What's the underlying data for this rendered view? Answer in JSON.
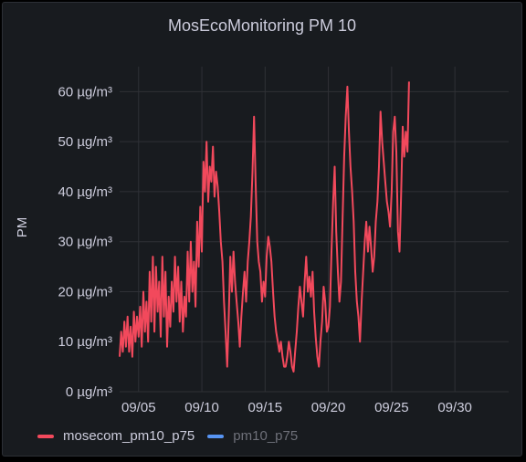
{
  "panel": {
    "title": "MosEcoMonitoring PM 10"
  },
  "chart_data": {
    "type": "line",
    "title": "MosEcoMonitoring PM 10",
    "ylabel": "PM",
    "xlabel": "",
    "yunit": "µg/m³",
    "ylim": [
      0,
      65
    ],
    "yticks": [
      0,
      10,
      20,
      30,
      40,
      50,
      60
    ],
    "ytick_labels": [
      "0 µg/m³",
      "10 µg/m³",
      "20 µg/m³",
      "30 µg/m³",
      "40 µg/m³",
      "50 µg/m³",
      "60 µg/m³"
    ],
    "xlim": [
      "09/03 12:00",
      "10/04 06:00"
    ],
    "xticks": [
      "09/05",
      "09/10",
      "09/15",
      "09/20",
      "09/25",
      "09/30"
    ],
    "grid": true,
    "legend_position": "bottom-left",
    "series": [
      {
        "name": "mosecom_pm10_p75",
        "color": "#f2495c",
        "visible": true,
        "x_start": "09/03 12:00",
        "x_step_hours": 3,
        "values": [
          7,
          12,
          8,
          14,
          9,
          15,
          8,
          13,
          7,
          16,
          10,
          15,
          11,
          17,
          9,
          20,
          12,
          18,
          10,
          24,
          14,
          27,
          12,
          25,
          16,
          22,
          11,
          27,
          15,
          24,
          9,
          19,
          13,
          22,
          16,
          27,
          18,
          25,
          14,
          22,
          12,
          19,
          15,
          28,
          18,
          30,
          20,
          26,
          17,
          34,
          25,
          37,
          28,
          46,
          40,
          50,
          38,
          45,
          42,
          49,
          39,
          44,
          41,
          36,
          30,
          26,
          18,
          12,
          5,
          15,
          27,
          20,
          28,
          22,
          18,
          14,
          9,
          15,
          20,
          24,
          18,
          26,
          30,
          35,
          44,
          55,
          42,
          30,
          26,
          24,
          18,
          22,
          19,
          27,
          31,
          29,
          26,
          20,
          15,
          12,
          10,
          8,
          10,
          7,
          5,
          5,
          7,
          10,
          8,
          5,
          4,
          8,
          12,
          17,
          21,
          18,
          15,
          22,
          27,
          20,
          23,
          19,
          24,
          16,
          11,
          7,
          5,
          10,
          14,
          21,
          18,
          12,
          13,
          17,
          28,
          38,
          45,
          32,
          24,
          18,
          22,
          35,
          47,
          55,
          61,
          52,
          45,
          40,
          34,
          24,
          18,
          15,
          10,
          18,
          24,
          30,
          34,
          28,
          33,
          29,
          24,
          27,
          34,
          38,
          45,
          56,
          50,
          46,
          42,
          38,
          36,
          33,
          40,
          52,
          55,
          48,
          32,
          28,
          39,
          53,
          47,
          52,
          48,
          62
        ]
      },
      {
        "name": "pm10_p75",
        "color": "#5794f2",
        "visible": false,
        "values": []
      }
    ]
  }
}
